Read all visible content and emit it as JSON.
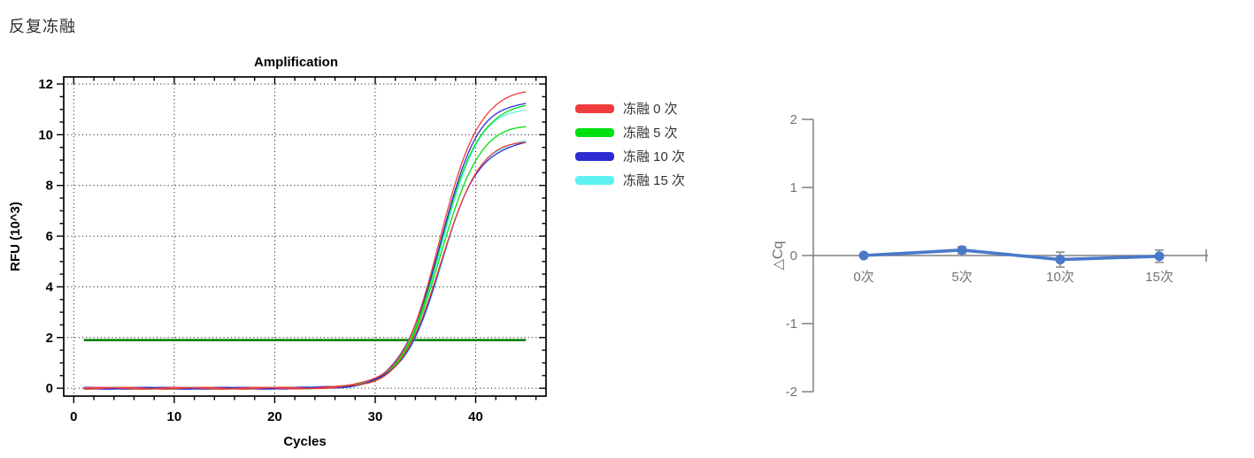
{
  "title": "反复冻融",
  "colors": {
    "red": "#f03c3c",
    "green": "#00df10",
    "blue": "#2c2cd2",
    "cyan": "#5ef2f2",
    "threshold_green": "#007c00",
    "frame_black": "#000000",
    "dcq_blue": "#4a79c8",
    "dcq_axis_gray": "#808080",
    "dcq_text_gray": "#737373",
    "error_bar_gray": "#8e8e8e"
  },
  "legend": {
    "items": [
      {
        "label": "冻融 0 次",
        "color": "#f03c3c"
      },
      {
        "label": "冻融 5 次",
        "color": "#00df10"
      },
      {
        "label": "冻融 10 次",
        "color": "#2c2cd2"
      },
      {
        "label": "冻融 15 次",
        "color": "#5ef2f2"
      }
    ]
  },
  "chart_data": [
    {
      "type": "line",
      "title": "Amplification",
      "xlabel": "Cycles",
      "ylabel": "RFU (10^3)",
      "xlim": [
        -1,
        47
      ],
      "ylim": [
        -0.31,
        12.28
      ],
      "xticks": [
        0,
        10,
        20,
        30,
        40
      ],
      "yticks": [
        0,
        2,
        4,
        6,
        8,
        10,
        12
      ],
      "x_minor_step": 2,
      "y_minor_step": 0.5,
      "grid": "dotted",
      "threshold": {
        "y": 1.9,
        "x_start": 1,
        "x_end": 45
      },
      "x_data_range": [
        1,
        45
      ],
      "sigmoid_k": 0.52,
      "series": [
        {
          "name": "冻融 15 次 rep1",
          "group": "冻融 15 次",
          "color": "#5ef2f2",
          "plateau": 11.15,
          "cq": 33.5
        },
        {
          "name": "冻融 15 次 rep2",
          "group": "冻融 15 次",
          "color": "#5ef2f2",
          "plateau": 9.9,
          "cq": 33.85
        },
        {
          "name": "冻融 5 次 rep1",
          "group": "冻融 5 次",
          "color": "#00df10",
          "plateau": 11.25,
          "cq": 33.45
        },
        {
          "name": "冻融 5 次 rep2",
          "group": "冻融 5 次",
          "color": "#00df10",
          "plateau": 10.45,
          "cq": 33.6
        },
        {
          "name": "冻融 10 次 rep1",
          "group": "冻融 10 次",
          "color": "#2c2cd2",
          "plateau": 11.4,
          "cq": 33.35
        },
        {
          "name": "冻融 10 次 rep2",
          "group": "冻融 10 次",
          "color": "#2c2cd2",
          "plateau": 9.8,
          "cq": 33.8
        },
        {
          "name": "冻融 0 次 rep1",
          "group": "冻融 0 次",
          "color": "#f03c3c",
          "plateau": 11.8,
          "cq": 33.3
        },
        {
          "name": "冻融 0 次 rep2",
          "group": "冻融 0 次",
          "color": "#f03c3c",
          "plateau": 9.85,
          "cq": 33.75
        }
      ]
    },
    {
      "type": "line",
      "ylabel": "△Cq",
      "categories": [
        "0次",
        "5次",
        "10次",
        "15次"
      ],
      "values": [
        0.0,
        0.08,
        -0.06,
        -0.01
      ],
      "errors": [
        0.0,
        0.05,
        0.11,
        0.09
      ],
      "ylim": [
        -2,
        2
      ],
      "yticks": [
        2,
        1,
        0,
        -1,
        -2
      ],
      "grid": "off",
      "legend": "none"
    }
  ]
}
